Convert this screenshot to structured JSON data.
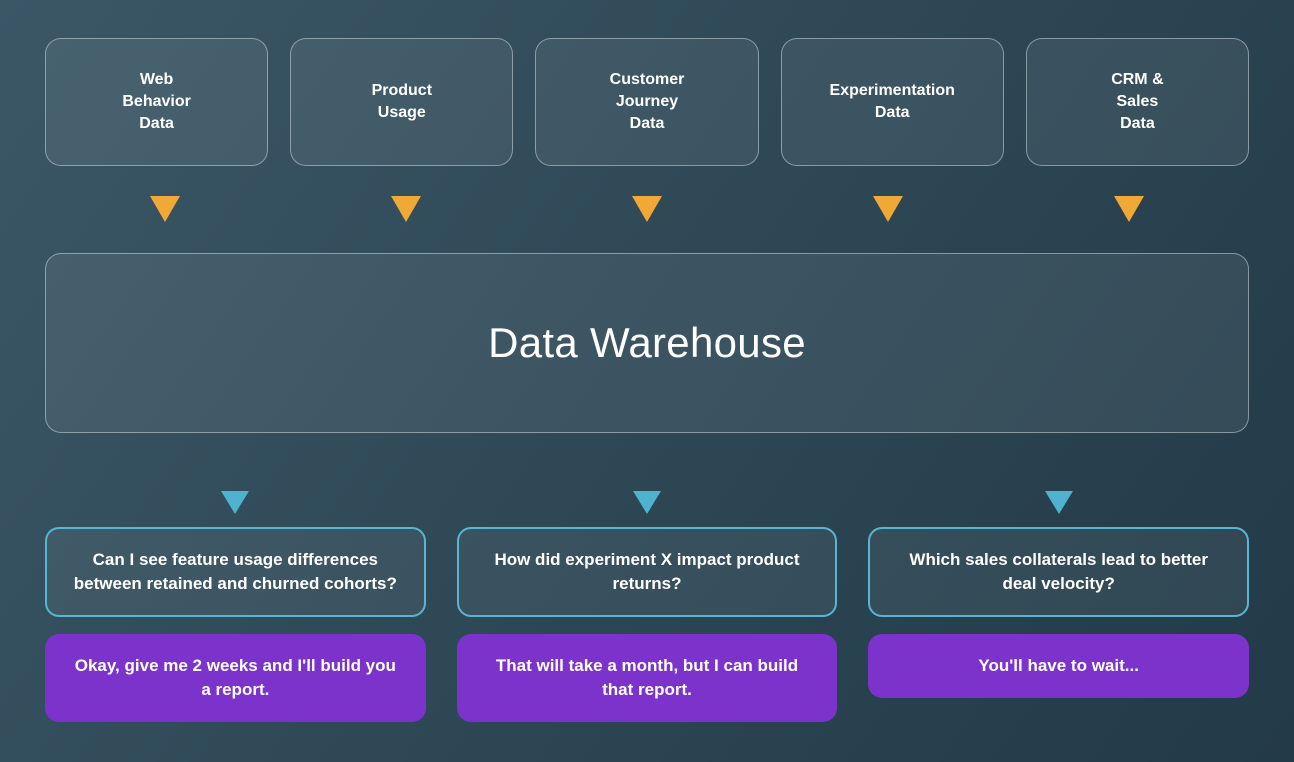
{
  "colors": {
    "background_top_left": "#3b5766",
    "background_bottom_right": "#233a48",
    "panel_border": "#8fa3ad",
    "orange_arrow": "#f0a936",
    "cyan_arrow": "#4fb3cf",
    "question_border": "#57b6d2",
    "answer_fill": "#7b33cc",
    "text": "#ffffff"
  },
  "sources": [
    {
      "label": "Web\nBehavior\nData"
    },
    {
      "label": "Product\nUsage"
    },
    {
      "label": "Customer\nJourney\nData"
    },
    {
      "label": "Experimentation\nData"
    },
    {
      "label": "CRM &\nSales\nData"
    }
  ],
  "warehouse": {
    "title": "Data Warehouse"
  },
  "qa_columns": [
    {
      "question": "Can I see feature usage differences between retained and churned cohorts?",
      "answer": "Okay, give me 2 weeks and I'll build you a report."
    },
    {
      "question": "How did experiment X impact product returns?",
      "answer": "That will take a month, but I can build that report."
    },
    {
      "question": "Which sales collaterals lead to better deal velocity?",
      "answer": "You'll have to wait..."
    }
  ]
}
